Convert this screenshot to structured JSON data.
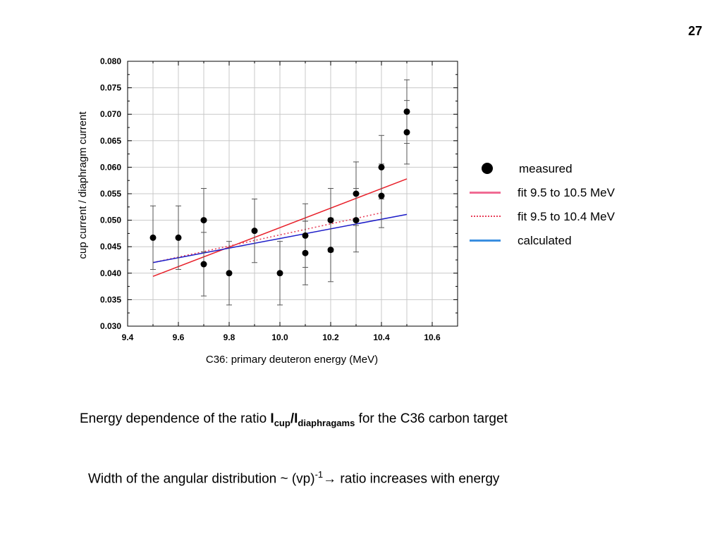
{
  "page_number": "27",
  "colors": {
    "points": "#000000",
    "fit_10_5": "#e8202a",
    "fit_10_4": "#e8405a",
    "calculated": "#1c1cc8",
    "legend_fit_10_5": "#f06b93",
    "legend_calculated": "#3a8fe0",
    "grid": "#c8c8c8",
    "errorbar": "#555555"
  },
  "legend": {
    "measured": "measured",
    "fit_10_5": "fit 9.5 to 10.5 MeV",
    "fit_10_4": "fit 9.5 to 10.4 MeV",
    "calculated": "calculated"
  },
  "caption1": {
    "text_a": "Energy dependence of the ratio ",
    "i1": "I",
    "sub1": "cup",
    "slash": "/",
    "i2": "I",
    "sub2": "diaphragams",
    "text_b": " for the C36 carbon target"
  },
  "caption2": {
    "text_a": "Width of the angular distribution ~  (vp)",
    "sup": "-1",
    "text_b": "→ ratio increases with energy"
  },
  "chart_data": {
    "type": "scatter",
    "title": "",
    "xlabel": "C36: primary deuteron energy (MeV)",
    "ylabel": "cup current / diaphragm current",
    "xlim": [
      9.4,
      10.7
    ],
    "ylim": [
      0.03,
      0.08
    ],
    "xticks": [
      9.4,
      9.6,
      9.8,
      10.0,
      10.2,
      10.4,
      10.6
    ],
    "yticks": [
      0.03,
      0.035,
      0.04,
      0.045,
      0.05,
      0.055,
      0.06,
      0.065,
      0.07,
      0.075,
      0.08
    ],
    "xtick_labels": [
      "9.4",
      "9.6",
      "9.8",
      "10.0",
      "10.2",
      "10.4",
      "10.6"
    ],
    "ytick_labels": [
      "0.030",
      "0.035",
      "0.040",
      "0.045",
      "0.050",
      "0.055",
      "0.060",
      "0.065",
      "0.070",
      "0.075",
      "0.080"
    ],
    "grid": true,
    "legend_position": "right",
    "points": [
      {
        "x": 9.5,
        "y": 0.0467,
        "lo": 0.0407,
        "hi": 0.0527
      },
      {
        "x": 9.6,
        "y": 0.0467,
        "lo": 0.0407,
        "hi": 0.0527
      },
      {
        "x": 9.7,
        "y": 0.05,
        "lo": 0.044,
        "hi": 0.056
      },
      {
        "x": 9.7,
        "y": 0.0417,
        "lo": 0.0357,
        "hi": 0.0477
      },
      {
        "x": 9.8,
        "y": 0.04,
        "lo": 0.034,
        "hi": 0.046
      },
      {
        "x": 9.9,
        "y": 0.048,
        "lo": 0.042,
        "hi": 0.054
      },
      {
        "x": 10.0,
        "y": 0.04,
        "lo": 0.034,
        "hi": 0.046
      },
      {
        "x": 10.1,
        "y": 0.0471,
        "lo": 0.0411,
        "hi": 0.0531
      },
      {
        "x": 10.1,
        "y": 0.0438,
        "lo": 0.0378,
        "hi": 0.0498
      },
      {
        "x": 10.2,
        "y": 0.05,
        "lo": 0.044,
        "hi": 0.056
      },
      {
        "x": 10.2,
        "y": 0.0444,
        "lo": 0.0384,
        "hi": 0.0504
      },
      {
        "x": 10.3,
        "y": 0.055,
        "lo": 0.049,
        "hi": 0.061
      },
      {
        "x": 10.3,
        "y": 0.05,
        "lo": 0.044,
        "hi": 0.056
      },
      {
        "x": 10.4,
        "y": 0.06,
        "lo": 0.054,
        "hi": 0.066
      },
      {
        "x": 10.4,
        "y": 0.0546,
        "lo": 0.0486,
        "hi": 0.0606
      },
      {
        "x": 10.5,
        "y": 0.0705,
        "lo": 0.0645,
        "hi": 0.0765
      },
      {
        "x": 10.5,
        "y": 0.0666,
        "lo": 0.0606,
        "hi": 0.0726
      }
    ],
    "lines": [
      {
        "key": "fit_10_5",
        "style": "solid",
        "x": [
          9.5,
          10.5
        ],
        "y": [
          0.0394,
          0.0578
        ]
      },
      {
        "key": "fit_10_4",
        "style": "dotted",
        "x": [
          9.5,
          10.4
        ],
        "y": [
          0.042,
          0.0514
        ]
      },
      {
        "key": "calculated",
        "style": "solid",
        "x": [
          9.5,
          10.5
        ],
        "y": [
          0.042,
          0.0511
        ]
      }
    ]
  }
}
